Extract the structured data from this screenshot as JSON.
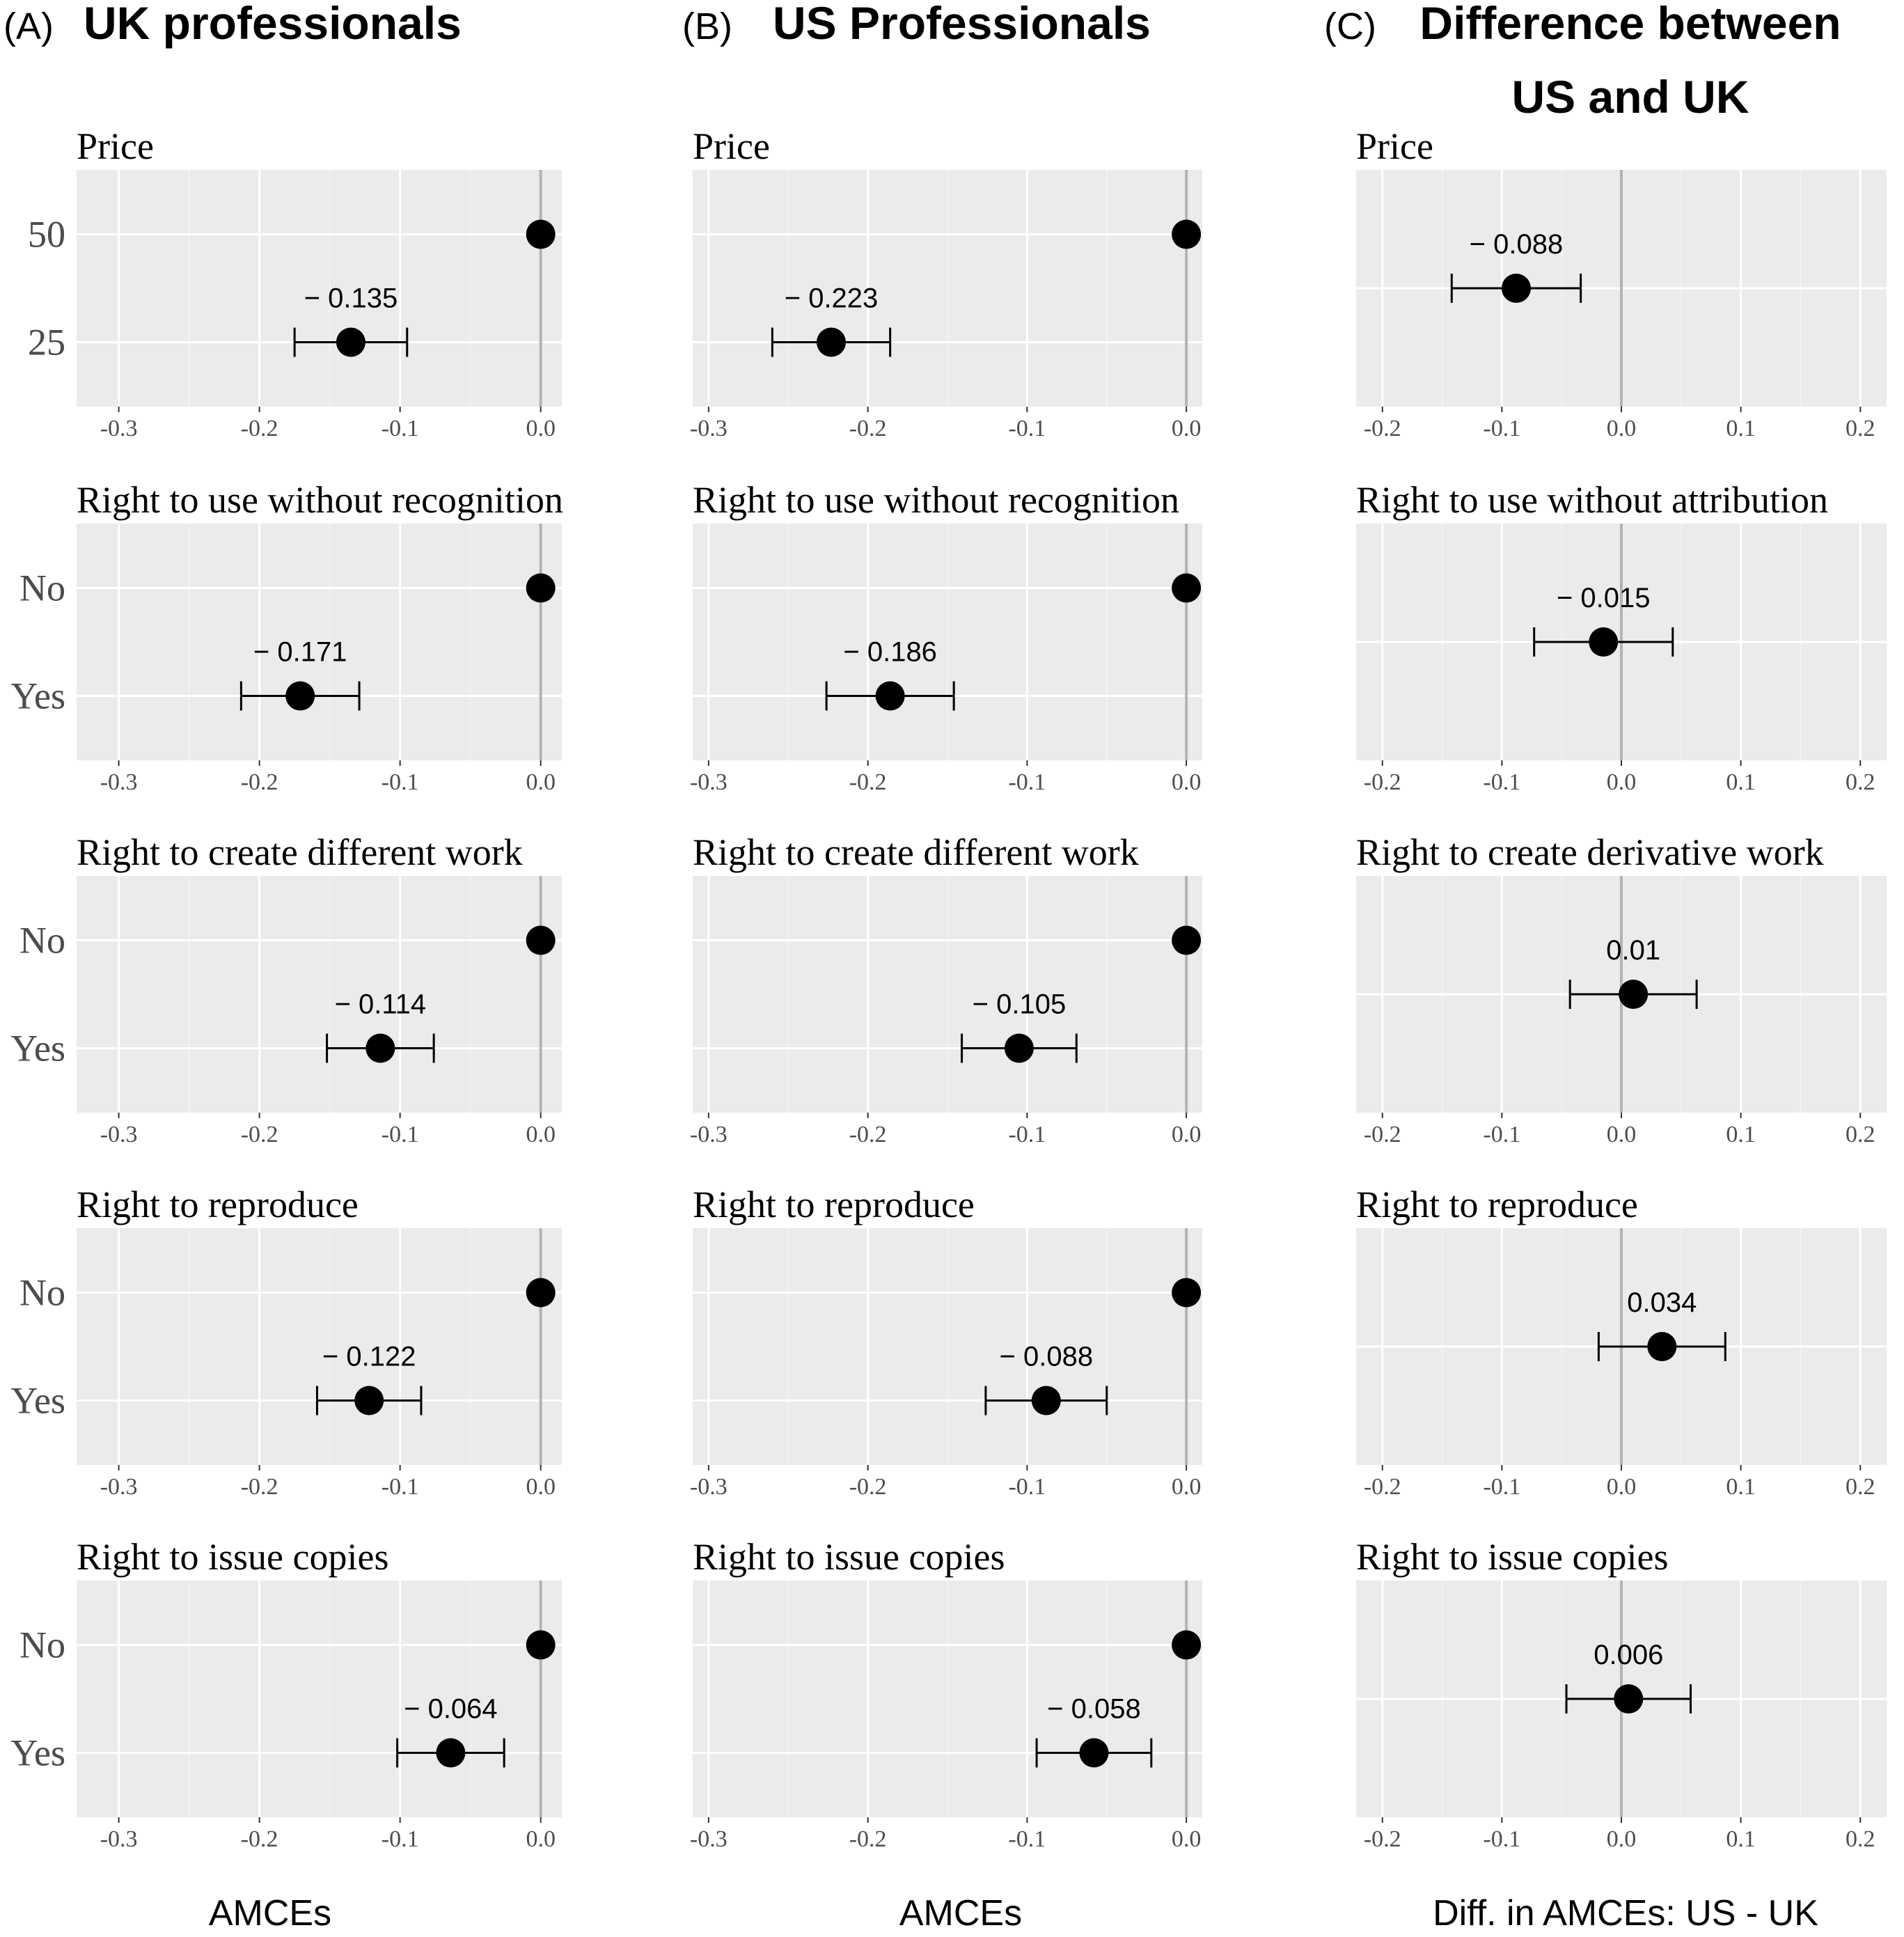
{
  "chart_data": [
    {
      "type": "scatter",
      "panel_label": "(A)",
      "title": "UK professionals",
      "xlabel": "AMCEs",
      "xlim": [
        -0.33,
        0.015
      ],
      "xticks": [
        -0.3,
        -0.2,
        -0.1,
        0.0
      ],
      "xtick_labels": [
        "-0.3",
        "-0.2",
        "-0.1",
        "0.0"
      ],
      "reference_line": 0,
      "grid": true,
      "facets": [
        {
          "title": "Price",
          "levels": [
            {
              "label": "50",
              "estimate": 0,
              "baseline": true
            },
            {
              "label": "25",
              "estimate": -0.135,
              "ci": [
                -0.175,
                -0.095
              ],
              "value_label": "− 0.135"
            }
          ]
        },
        {
          "title": "Right to use without recognition",
          "levels": [
            {
              "label": "No",
              "estimate": 0,
              "baseline": true
            },
            {
              "label": "Yes",
              "estimate": -0.171,
              "ci": [
                -0.213,
                -0.129
              ],
              "value_label": "− 0.171"
            }
          ]
        },
        {
          "title": "Right to create different work",
          "levels": [
            {
              "label": "No",
              "estimate": 0,
              "baseline": true
            },
            {
              "label": "Yes",
              "estimate": -0.114,
              "ci": [
                -0.152,
                -0.076
              ],
              "value_label": "− 0.114"
            }
          ]
        },
        {
          "title": "Right to reproduce",
          "levels": [
            {
              "label": "No",
              "estimate": 0,
              "baseline": true
            },
            {
              "label": "Yes",
              "estimate": -0.122,
              "ci": [
                -0.159,
                -0.085
              ],
              "value_label": "− 0.122"
            }
          ]
        },
        {
          "title": "Right to issue copies",
          "levels": [
            {
              "label": "No",
              "estimate": 0,
              "baseline": true
            },
            {
              "label": "Yes",
              "estimate": -0.064,
              "ci": [
                -0.102,
                -0.026
              ],
              "value_label": "− 0.064"
            }
          ]
        }
      ]
    },
    {
      "type": "scatter",
      "panel_label": "(B)",
      "title": "US Professionals",
      "xlabel": "AMCEs",
      "xlim": [
        -0.31,
        0.01
      ],
      "xticks": [
        -0.3,
        -0.2,
        -0.1,
        0.0
      ],
      "xtick_labels": [
        "-0.3",
        "-0.2",
        "-0.1",
        "0.0"
      ],
      "reference_line": 0,
      "grid": true,
      "facets": [
        {
          "title": "Price",
          "levels": [
            {
              "label": "50",
              "estimate": 0,
              "baseline": true
            },
            {
              "label": "25",
              "estimate": -0.223,
              "ci": [
                -0.26,
                -0.186
              ],
              "value_label": "− 0.223"
            }
          ]
        },
        {
          "title": "Right to use without recognition",
          "levels": [
            {
              "label": "No",
              "estimate": 0,
              "baseline": true
            },
            {
              "label": "Yes",
              "estimate": -0.186,
              "ci": [
                -0.226,
                -0.146
              ],
              "value_label": "− 0.186"
            }
          ]
        },
        {
          "title": "Right to create different work",
          "levels": [
            {
              "label": "No",
              "estimate": 0,
              "baseline": true
            },
            {
              "label": "Yes",
              "estimate": -0.105,
              "ci": [
                -0.141,
                -0.069
              ],
              "value_label": "− 0.105"
            }
          ]
        },
        {
          "title": "Right to reproduce",
          "levels": [
            {
              "label": "No",
              "estimate": 0,
              "baseline": true
            },
            {
              "label": "Yes",
              "estimate": -0.088,
              "ci": [
                -0.126,
                -0.05
              ],
              "value_label": "− 0.088"
            }
          ]
        },
        {
          "title": "Right to issue copies",
          "levels": [
            {
              "label": "No",
              "estimate": 0,
              "baseline": true
            },
            {
              "label": "Yes",
              "estimate": -0.058,
              "ci": [
                -0.094,
                -0.022
              ],
              "value_label": "− 0.058"
            }
          ]
        }
      ]
    },
    {
      "type": "scatter",
      "panel_label": "(C)",
      "title": "Difference between US and UK",
      "title_lines": [
        "Difference between",
        "US and UK"
      ],
      "xlabel": "Diff. in AMCEs: US - UK",
      "xlim": [
        -0.222,
        0.222
      ],
      "xticks": [
        -0.2,
        -0.1,
        0.0,
        0.1,
        0.2
      ],
      "xtick_labels": [
        "-0.2",
        "-0.1",
        "0.0",
        "0.1",
        "0.2"
      ],
      "reference_line": 0,
      "grid": true,
      "facets": [
        {
          "title": "Price",
          "estimate": -0.088,
          "ci": [
            -0.142,
            -0.034
          ],
          "value_label": "− 0.088"
        },
        {
          "title": "Right to use without attribution",
          "estimate": -0.015,
          "ci": [
            -0.073,
            0.043
          ],
          "value_label": "− 0.015"
        },
        {
          "title": "Right to create derivative work",
          "estimate": 0.01,
          "ci": [
            -0.043,
            0.063
          ],
          "value_label": "0.01"
        },
        {
          "title": "Right to reproduce",
          "estimate": 0.034,
          "ci": [
            -0.019,
            0.087
          ],
          "value_label": "0.034"
        },
        {
          "title": "Right to issue copies",
          "estimate": 0.006,
          "ci": [
            -0.046,
            0.058
          ],
          "value_label": "0.006"
        }
      ]
    }
  ]
}
